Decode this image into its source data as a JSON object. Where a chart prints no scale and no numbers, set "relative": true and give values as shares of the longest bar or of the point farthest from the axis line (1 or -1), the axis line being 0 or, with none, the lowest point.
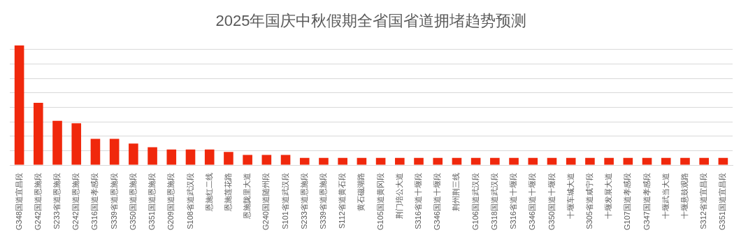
{
  "chart_data": {
    "type": "bar",
    "title": "2025年国庆中秋假期全省国省道拥堵趋势预测",
    "relative": true,
    "grid": "y",
    "color": "#f0280c",
    "categories": [
      "G348国道宜昌段",
      "G242国道恩施段",
      "S233省道恩施段",
      "G242国道恩施段",
      "G316国道孝感段",
      "S339省道恩施段",
      "G350国道恩施段",
      "G351国道恩施段",
      "G209国道恩施段",
      "S108省道武汉段",
      "恩施红二线",
      "恩施莲花路",
      "恩施陇里大道",
      "G240国道随州段",
      "S101省道武汉段",
      "S233省道恩施段",
      "S339省道恩施段",
      "S112省道黄石段",
      "黄石磁湖路",
      "G105国道黄冈段",
      "荆门培公大道",
      "S316省道十堰段",
      "G346国道十堰段",
      "荆州荆三线",
      "G106国道武汉段",
      "G318国道武汉段",
      "S316省道十堰段",
      "G346国道十堰段",
      "G350国道十堰段",
      "十堰车城大道",
      "S305省道咸宁段",
      "十堰发展大道",
      "G107国道孝感段",
      "G347国道孝感段",
      "十堰武当大道",
      "十堰悬鼓观路",
      "S312省道宜昌段",
      "G351国道宜昌段"
    ],
    "values": [
      1,
      0.52,
      0.37,
      0.35,
      0.22,
      0.22,
      0.18,
      0.15,
      0.13,
      0.13,
      0.13,
      0.11,
      0.085,
      0.085,
      0.085,
      0.06,
      0.06,
      0.06,
      0.06,
      0.06,
      0.06,
      0.06,
      0.06,
      0.06,
      0.06,
      0.06,
      0.06,
      0.06,
      0.06,
      0.06,
      0.06,
      0.06,
      0.06,
      0.06,
      0.06,
      0.06,
      0.06,
      0.06
    ]
  }
}
